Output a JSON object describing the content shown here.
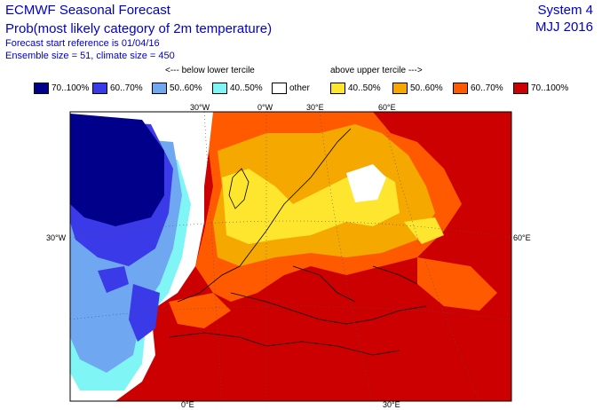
{
  "header": {
    "title": "ECMWF Seasonal Forecast",
    "subtitle": "Prob(most likely category of 2m temperature)",
    "start_reference": "Forecast start reference is 01/04/16",
    "ensemble": "Ensemble size = 51, climate size = 450",
    "system": "System 4",
    "period": "MJJ 2016"
  },
  "legend": {
    "below_caption": "<--- below lower tercile",
    "above_caption": "above upper tercile --->",
    "items": [
      {
        "label": "70..100%",
        "color": "#00008b"
      },
      {
        "label": "60..70%",
        "color": "#3a3ae8"
      },
      {
        "label": "50..60%",
        "color": "#6fa8f0"
      },
      {
        "label": "40..50%",
        "color": "#7ff5f5"
      },
      {
        "label": "other",
        "color": "#ffffff"
      },
      {
        "label": "40..50%",
        "color": "#ffe62e"
      },
      {
        "label": "50..60%",
        "color": "#f5a800"
      },
      {
        "label": "60..70%",
        "color": "#ff5a00"
      },
      {
        "label": "70..100%",
        "color": "#cc0000"
      }
    ]
  },
  "map": {
    "graticule_labels": {
      "top": [
        "30°W",
        "0°W",
        "30°E",
        "60°E"
      ],
      "left": [
        "30°W"
      ],
      "right": [
        "60°E"
      ],
      "bottom": [
        "0°E",
        "30°E"
      ]
    },
    "colors": {
      "deep_blue": "#00008b",
      "blue": "#3a3ae8",
      "light_blue": "#6fa8f0",
      "cyan": "#7ff5f5",
      "white": "#ffffff",
      "yellow": "#ffe62e",
      "orange": "#f5a800",
      "dark_orange": "#ff5a00",
      "red": "#cc0000"
    }
  }
}
